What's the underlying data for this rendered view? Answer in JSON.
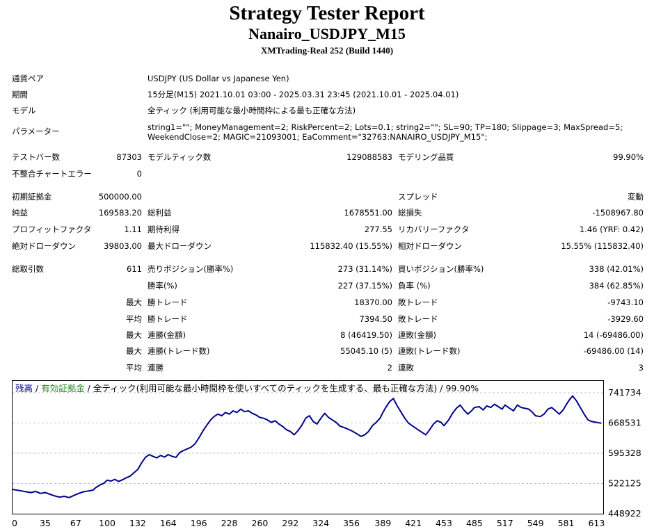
{
  "header": {
    "title": "Strategy Tester Report",
    "subtitle": "Nanairo_USDJPY_M15",
    "server": "XMTrading-Real 252 (Build 1440)"
  },
  "info": {
    "pair_label": "通貨ペア",
    "pair_value": "USDJPY (US Dollar vs Japanese Yen)",
    "period_label": "期間",
    "period_value": "15分足(M15) 2021.10.01 03:00 - 2025.03.31 23:45 (2021.10.01 - 2025.04.01)",
    "model_label": "モデル",
    "model_value": "全ティック (利用可能な最小時間枠による最も正確な方法)",
    "params_label": "パラメーター",
    "params_line1": "string1=\"\"; MoneyManagement=2; RiskPercent=2; Lots=0.1; string2=\"\"; SL=90; TP=180; Slippage=3; MaxSpread=5;",
    "params_line2": "WeekendClose=2; MAGIC=21093001; EaComment=\"32763:NANAIRO_USDJPY_M15\";"
  },
  "stats": {
    "bars_label": "テストバー数",
    "bars_value": "87303",
    "ticks_label": "モデルティック数",
    "ticks_value": "129088583",
    "quality_label": "モデリング品質",
    "quality_value": "99.90%",
    "mismatch_label": "不整合チャートエラー",
    "mismatch_value": "0",
    "deposit_label": "初期証拠金",
    "deposit_value": "500000.00",
    "spread_label": "スプレッド",
    "spread_value": "変動",
    "net_label": "純益",
    "net_value": "169583.20",
    "gross_profit_label": "総利益",
    "gross_profit_value": "1678551.00",
    "gross_loss_label": "総損失",
    "gross_loss_value": "-1508967.80",
    "pf_label": "プロフィットファクタ",
    "pf_value": "1.11",
    "expected_label": "期待利得",
    "expected_value": "277.55",
    "recovery_label": "リカバリーファクタ",
    "recovery_value": "1.46 (YRF: 0.42)",
    "abs_dd_label": "絶対ドローダウン",
    "abs_dd_value": "39803.00",
    "max_dd_label": "最大ドローダウン",
    "max_dd_value": "115832.40 (15.55%)",
    "rel_dd_label": "相対ドローダウン",
    "rel_dd_value": "15.55% (115832.40)",
    "trades_label": "総取引数",
    "trades_value": "611",
    "short_label": "売りポジション(勝率%)",
    "short_value": "273 (31.14%)",
    "long_label": "買いポジション(勝率%)",
    "long_value": "338 (42.01%)",
    "win_rate_label": "勝率(%)",
    "win_rate_value": "227 (37.15%)",
    "loss_rate_label": "負率 (%)",
    "loss_rate_value": "384 (62.85%)",
    "max_word": "最大",
    "avg_word": "平均",
    "max_win_label": "勝トレード",
    "max_win_value": "18370.00",
    "max_loss_label": "敗トレード",
    "max_loss_value": "-9743.10",
    "avg_win_label": "勝トレード",
    "avg_win_value": "7394.50",
    "avg_loss_label": "敗トレード",
    "avg_loss_value": "-3929.60",
    "cons_wins_amt_label": "連勝(金額)",
    "cons_wins_amt_value": "8 (46419.50)",
    "cons_losses_amt_label": "連敗(金額)",
    "cons_losses_amt_value": "14 (-69486.00)",
    "cons_profit_label": "連勝(トレード数)",
    "cons_profit_value": "55045.10 (5)",
    "cons_loss_label": "連敗(トレード数)",
    "cons_loss_value": "-69486.00 (14)",
    "avg_cons_wins_label": "連勝",
    "avg_cons_wins_value": "2",
    "avg_cons_losses_label": "連敗",
    "avg_cons_losses_value": "3"
  },
  "chart_data": {
    "type": "line",
    "legend": {
      "balance": "残高",
      "sep1": " / ",
      "equity": "有効証拠金",
      "sep2": " / ",
      "model": "全ティック(利用可能な最小時間枠を使いすべてのティックを生成する、最も正確な方法)",
      "sep3": " / ",
      "quality": "99.90%"
    },
    "colors": {
      "balance": "#00008b",
      "equity": "#228b22",
      "grid": "#c0c0c0"
    },
    "xticks": [
      "0",
      "35",
      "67",
      "100",
      "132",
      "164",
      "196",
      "228",
      "260",
      "292",
      "324",
      "356",
      "389",
      "421",
      "453",
      "485",
      "517",
      "549",
      "581",
      "613"
    ],
    "xtick_values": [
      0,
      35,
      67,
      100,
      132,
      164,
      196,
      228,
      260,
      292,
      324,
      356,
      389,
      421,
      453,
      485,
      517,
      549,
      581,
      613
    ],
    "yticks": [
      "741734",
      "668531",
      "595328",
      "522125",
      "448922"
    ],
    "ylim": [
      448922,
      741734
    ],
    "xlim": [
      0,
      620
    ],
    "series": [
      {
        "name": "残高",
        "x": [
          0,
          8,
          15,
          20,
          25,
          30,
          35,
          40,
          45,
          50,
          55,
          60,
          65,
          70,
          75,
          80,
          85,
          88,
          92,
          96,
          100,
          104,
          108,
          112,
          116,
          120,
          124,
          128,
          132,
          136,
          140,
          144,
          148,
          152,
          156,
          160,
          164,
          168,
          172,
          176,
          180,
          184,
          188,
          192,
          196,
          200,
          204,
          208,
          212,
          216,
          220,
          224,
          228,
          232,
          236,
          240,
          244,
          248,
          252,
          256,
          260,
          264,
          268,
          272,
          276,
          280,
          284,
          288,
          292,
          296,
          300,
          304,
          308,
          312,
          316,
          320,
          324,
          328,
          332,
          336,
          340,
          344,
          348,
          350,
          356,
          362,
          366,
          370,
          374,
          378,
          382,
          386,
          389,
          392,
          396,
          400,
          404,
          408,
          412,
          416,
          421,
          426,
          430,
          434,
          438,
          442,
          446,
          450,
          453,
          458,
          462,
          466,
          470,
          474,
          478,
          482,
          485,
          490,
          494,
          498,
          502,
          506,
          510,
          514,
          517,
          522,
          526,
          530,
          534,
          538,
          542,
          546,
          549,
          554,
          558,
          562,
          566,
          570,
          574,
          578,
          581,
          585,
          588,
          592,
          596,
          600,
          604,
          608,
          613,
          618
        ],
        "y": [
          508000,
          505000,
          502000,
          500000,
          503000,
          498000,
          500000,
          496000,
          492000,
          489000,
          491000,
          488000,
          493000,
          498000,
          502000,
          504000,
          506000,
          512000,
          518000,
          522000,
          530000,
          528000,
          532000,
          527000,
          531000,
          536000,
          540000,
          548000,
          556000,
          572000,
          585000,
          592000,
          588000,
          584000,
          590000,
          586000,
          592000,
          588000,
          585000,
          597000,
          602000,
          606000,
          610000,
          618000,
          632000,
          648000,
          662000,
          675000,
          684000,
          690000,
          686000,
          694000,
          690000,
          698000,
          694000,
          702000,
          696000,
          698000,
          692000,
          688000,
          682000,
          680000,
          676000,
          670000,
          674000,
          666000,
          660000,
          652000,
          648000,
          640000,
          650000,
          663000,
          680000,
          686000,
          672000,
          666000,
          680000,
          692000,
          682000,
          676000,
          670000,
          661000,
          658000,
          656000,
          650000,
          642000,
          636000,
          640000,
          648000,
          662000,
          670000,
          680000,
          694000,
          706000,
          720000,
          728000,
          710000,
          695000,
          680000,
          668000,
          660000,
          652000,
          646000,
          640000,
          652000,
          666000,
          674000,
          670000,
          662000,
          676000,
          692000,
          704000,
          712000,
          700000,
          690000,
          698000,
          706000,
          708000,
          700000,
          710000,
          706000,
          714000,
          708000,
          702000,
          712000,
          704000,
          698000,
          712000,
          706000,
          704000,
          702000,
          694000,
          686000,
          684000,
          690000,
          702000,
          706000,
          698000,
          690000,
          700000,
          712000,
          726000,
          734000,
          722000,
          706000,
          690000,
          676000,
          672000,
          670000,
          668000
        ]
      }
    ]
  }
}
